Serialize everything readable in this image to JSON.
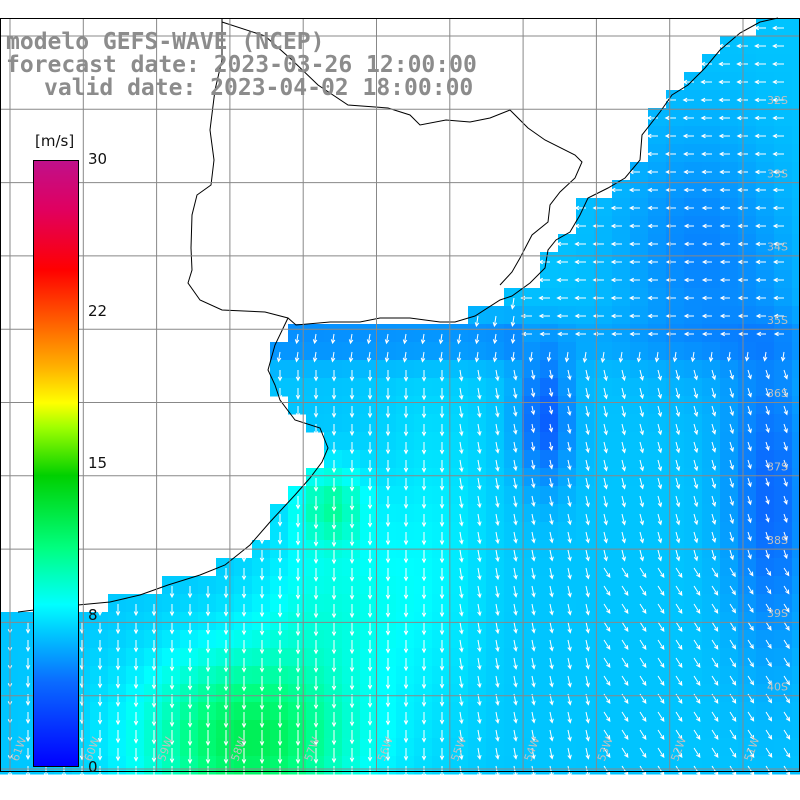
{
  "title": {
    "line1": "modelo GEFS-WAVE (NCEP)",
    "line2": "forecast date: 2023-03-26 12:00:00",
    "line3": "valid date: 2023-04-02 18:00:00"
  },
  "colorbar": {
    "unit": "[m/s]",
    "ticks": [
      "30",
      "22",
      "15",
      "8",
      "0"
    ],
    "range": [
      0,
      30
    ],
    "colors": [
      "#0000ff",
      "#00ffff",
      "#00ff00",
      "#ffff00",
      "#ff0000",
      "#c0108a"
    ]
  },
  "lat_labels": [
    "32S",
    "33S",
    "34S",
    "35S",
    "36S",
    "37S",
    "38S",
    "39S",
    "40S"
  ],
  "lon_labels": [
    "61W",
    "60W",
    "59W",
    "58W",
    "57W",
    "56W",
    "55W",
    "54W",
    "53W",
    "52W",
    "51W"
  ],
  "colors": {
    "land": "#ffffff",
    "coast": "#000000",
    "grid": "#888888",
    "arrow": "#ffffff",
    "title": "#8c8c8c"
  }
}
